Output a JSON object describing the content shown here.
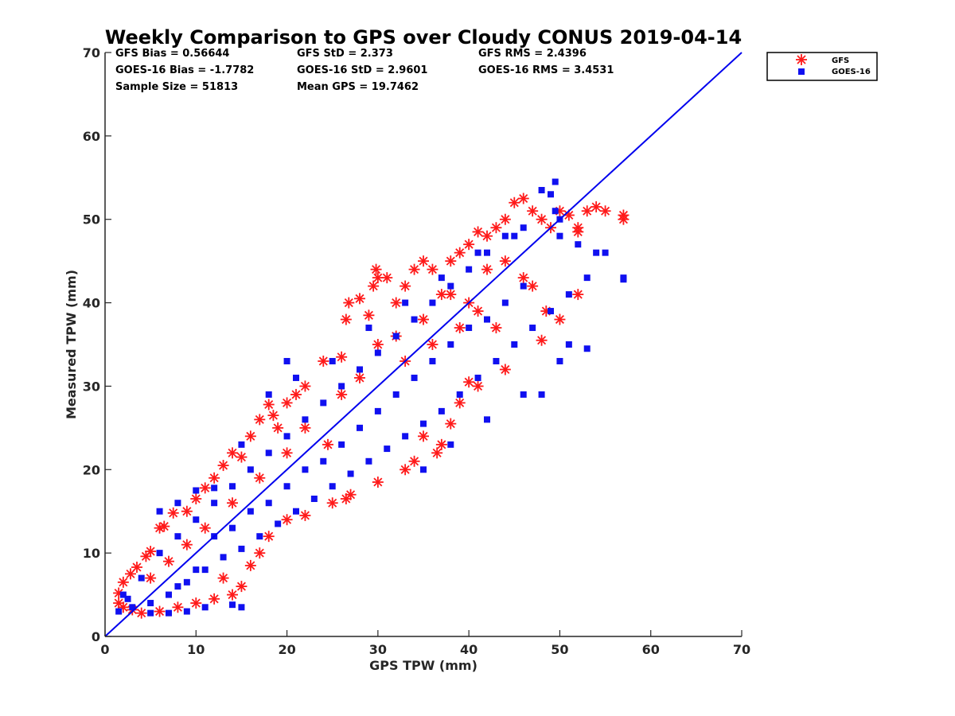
{
  "chart_data": {
    "type": "scatter",
    "title": "Weekly Comparison to GPS over Cloudy CONUS 2019-04-14",
    "xlabel": "GPS TPW (mm)",
    "ylabel": "Measured TPW (mm)",
    "xlim": [
      0,
      70
    ],
    "ylim": [
      0,
      70
    ],
    "xticks": [
      "0",
      "10",
      "20",
      "30",
      "40",
      "50",
      "60",
      "70"
    ],
    "yticks": [
      "0",
      "10",
      "20",
      "30",
      "40",
      "50",
      "60",
      "70"
    ],
    "grid": false,
    "legend_position": "outside-top-right",
    "stats": [
      [
        "GFS Bias = 0.56644",
        "GFS StD = 2.373",
        "GFS RMS = 2.4396"
      ],
      [
        "GOES-16 Bias = -1.7782",
        "GOES-16 StD = 2.9601",
        "GOES-16 RMS = 3.4531"
      ],
      [
        "Sample Size = 51813",
        "Mean GPS = 19.7462",
        ""
      ]
    ],
    "reference_line": {
      "x": [
        0,
        70
      ],
      "y": [
        0,
        70
      ],
      "color": "#0000ee"
    },
    "series": [
      {
        "name": "GFS",
        "marker": "asterisk",
        "color": "#ff1a1a",
        "points": [
          [
            1.5,
            5.2
          ],
          [
            2,
            6.5
          ],
          [
            2.8,
            7.5
          ],
          [
            3.5,
            8.3
          ],
          [
            4.5,
            9.6
          ],
          [
            5,
            10.2
          ],
          [
            6,
            13
          ],
          [
            6.5,
            13.2
          ],
          [
            7.5,
            14.8
          ],
          [
            9,
            15
          ],
          [
            10,
            16.5
          ],
          [
            11,
            17.8
          ],
          [
            12,
            19
          ],
          [
            13,
            20.5
          ],
          [
            14,
            22
          ],
          [
            15,
            21.5
          ],
          [
            16,
            24
          ],
          [
            17,
            26
          ],
          [
            18,
            27.8
          ],
          [
            18.5,
            26.5
          ],
          [
            19,
            25
          ],
          [
            20,
            28
          ],
          [
            21,
            29
          ],
          [
            22,
            30
          ],
          [
            24,
            33
          ],
          [
            26,
            33.5
          ],
          [
            26.5,
            38
          ],
          [
            26.8,
            40
          ],
          [
            28,
            40.5
          ],
          [
            29,
            38.5
          ],
          [
            29.5,
            42
          ],
          [
            29.8,
            44
          ],
          [
            30,
            43
          ],
          [
            31,
            43
          ],
          [
            32,
            40
          ],
          [
            33,
            42
          ],
          [
            34,
            44
          ],
          [
            35,
            45
          ],
          [
            36,
            44
          ],
          [
            37,
            41
          ],
          [
            38,
            45
          ],
          [
            39,
            46
          ],
          [
            40,
            47
          ],
          [
            41,
            48.5
          ],
          [
            42,
            48
          ],
          [
            43,
            49
          ],
          [
            44,
            50
          ],
          [
            45,
            52
          ],
          [
            46,
            52.5
          ],
          [
            47,
            51
          ],
          [
            48,
            50
          ],
          [
            49,
            49
          ],
          [
            50,
            51
          ],
          [
            51,
            50.5
          ],
          [
            52,
            49
          ],
          [
            53,
            51
          ],
          [
            54,
            51.5
          ],
          [
            55,
            51
          ],
          [
            57,
            50
          ],
          [
            57,
            50.5
          ],
          [
            52,
            48.5
          ],
          [
            52,
            41
          ],
          [
            50,
            38
          ],
          [
            48,
            35.5
          ],
          [
            48.5,
            39
          ],
          [
            47,
            42
          ],
          [
            46,
            43
          ],
          [
            44,
            45
          ],
          [
            43,
            37
          ],
          [
            44,
            32
          ],
          [
            41,
            30
          ],
          [
            40,
            30.5
          ],
          [
            39,
            28
          ],
          [
            38,
            25.5
          ],
          [
            37,
            23
          ],
          [
            36.5,
            22
          ],
          [
            35,
            24
          ],
          [
            34,
            21
          ],
          [
            33,
            20
          ],
          [
            30,
            18.5
          ],
          [
            27,
            17
          ],
          [
            26.5,
            16.5
          ],
          [
            25,
            16
          ],
          [
            22,
            14.5
          ],
          [
            20,
            14
          ],
          [
            18,
            12
          ],
          [
            17,
            10
          ],
          [
            16,
            8.5
          ],
          [
            15,
            6
          ],
          [
            14,
            5
          ],
          [
            13,
            7
          ],
          [
            12,
            4.5
          ],
          [
            10,
            4
          ],
          [
            8,
            3.5
          ],
          [
            6,
            3
          ],
          [
            4,
            2.8
          ],
          [
            3,
            3.2
          ],
          [
            2,
            3.5
          ],
          [
            1.5,
            4
          ],
          [
            24.5,
            23
          ],
          [
            30,
            35
          ],
          [
            32,
            36
          ],
          [
            35,
            38
          ],
          [
            38,
            41
          ],
          [
            40,
            40
          ],
          [
            42,
            44
          ],
          [
            26,
            29
          ],
          [
            22,
            25
          ],
          [
            20,
            22
          ],
          [
            17,
            19
          ],
          [
            14,
            16
          ],
          [
            11,
            13
          ],
          [
            9,
            11
          ],
          [
            7,
            9
          ],
          [
            5,
            7
          ],
          [
            28,
            31
          ],
          [
            33,
            33
          ],
          [
            36,
            35
          ],
          [
            39,
            37
          ],
          [
            41,
            39
          ]
        ]
      },
      {
        "name": "GOES-16",
        "marker": "square",
        "color": "#1010f0",
        "points": [
          [
            1.5,
            3.0
          ],
          [
            3,
            3.5
          ],
          [
            5,
            4
          ],
          [
            7,
            5
          ],
          [
            9,
            6.5
          ],
          [
            11,
            8
          ],
          [
            13,
            9.5
          ],
          [
            15,
            10.5
          ],
          [
            17,
            12
          ],
          [
            19,
            13.5
          ],
          [
            21,
            15
          ],
          [
            23,
            16.5
          ],
          [
            25,
            18
          ],
          [
            27,
            19.5
          ],
          [
            29,
            21
          ],
          [
            31,
            22.5
          ],
          [
            33,
            24
          ],
          [
            35,
            25.5
          ],
          [
            37,
            27
          ],
          [
            39,
            29
          ],
          [
            41,
            31
          ],
          [
            43,
            33
          ],
          [
            45,
            35
          ],
          [
            47,
            37
          ],
          [
            49,
            39
          ],
          [
            51,
            41
          ],
          [
            53,
            43
          ],
          [
            55,
            46
          ],
          [
            57,
            43
          ],
          [
            57,
            42.8
          ],
          [
            54,
            46
          ],
          [
            52,
            47
          ],
          [
            50,
            48
          ],
          [
            49,
            53
          ],
          [
            49.5,
            54.5
          ],
          [
            48,
            53.5
          ],
          [
            49.5,
            51
          ],
          [
            50,
            50
          ],
          [
            46,
            49
          ],
          [
            44,
            48
          ],
          [
            42,
            46
          ],
          [
            40,
            44
          ],
          [
            38,
            42
          ],
          [
            36,
            40
          ],
          [
            34,
            38
          ],
          [
            32,
            36
          ],
          [
            30,
            34
          ],
          [
            28,
            32
          ],
          [
            26,
            30
          ],
          [
            24,
            28
          ],
          [
            22,
            26
          ],
          [
            20,
            24
          ],
          [
            18,
            22
          ],
          [
            16,
            20
          ],
          [
            14,
            18
          ],
          [
            12,
            16
          ],
          [
            10,
            14
          ],
          [
            8,
            12
          ],
          [
            6,
            10
          ],
          [
            4,
            7
          ],
          [
            2,
            5
          ],
          [
            2.5,
            4.5
          ],
          [
            6,
            15
          ],
          [
            8,
            16
          ],
          [
            10,
            17.5
          ],
          [
            12,
            17.8
          ],
          [
            15,
            23
          ],
          [
            18,
            29
          ],
          [
            20,
            33
          ],
          [
            21,
            31
          ],
          [
            25,
            33
          ],
          [
            29,
            37
          ],
          [
            33,
            40
          ],
          [
            37,
            43
          ],
          [
            41,
            46
          ],
          [
            45,
            48
          ],
          [
            35,
            20
          ],
          [
            38,
            23
          ],
          [
            42,
            26
          ],
          [
            46,
            29
          ],
          [
            48,
            29
          ],
          [
            50,
            33
          ],
          [
            51,
            35
          ],
          [
            53,
            34.5
          ],
          [
            15,
            3.5
          ],
          [
            14,
            3.8
          ],
          [
            11,
            3.5
          ],
          [
            9,
            3
          ],
          [
            7,
            2.8
          ],
          [
            5,
            2.8
          ],
          [
            12,
            12
          ],
          [
            14,
            13
          ],
          [
            16,
            15
          ],
          [
            18,
            16
          ],
          [
            20,
            18
          ],
          [
            22,
            20
          ],
          [
            24,
            21
          ],
          [
            26,
            23
          ],
          [
            28,
            25
          ],
          [
            30,
            27
          ],
          [
            32,
            29
          ],
          [
            34,
            31
          ],
          [
            36,
            33
          ],
          [
            38,
            35
          ],
          [
            40,
            37
          ],
          [
            42,
            38
          ],
          [
            44,
            40
          ],
          [
            46,
            42
          ],
          [
            10,
            8
          ],
          [
            8,
            6
          ]
        ]
      }
    ]
  }
}
